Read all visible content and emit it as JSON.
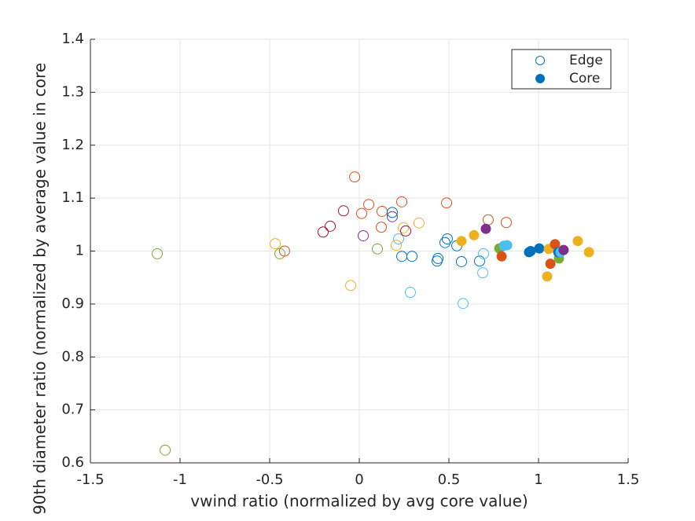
{
  "chart_data": {
    "type": "scatter",
    "xlabel": "vwind ratio (normalized by avg core value)",
    "ylabel": "90th diameter ratio (normalized by average value in core",
    "xlim": [
      -1.5,
      1.5
    ],
    "ylim": [
      0.6,
      1.4
    ],
    "xticks": [
      -1.5,
      -1,
      -0.5,
      0,
      0.5,
      1,
      1.5
    ],
    "yticks": [
      0.6,
      0.7,
      0.8,
      0.9,
      1,
      1.1,
      1.2,
      1.3,
      1.4
    ],
    "grid": true,
    "legend_position": "northeast",
    "series": [
      {
        "name": "Edge",
        "marker": "open",
        "color": "#0072bd",
        "x": [
          -1.127,
          -1.083,
          -0.469,
          -0.443,
          -0.417,
          -0.048,
          -0.026,
          -0.202,
          -0.162,
          -0.088,
          0.013,
          0.022,
          0.053,
          0.101,
          0.123,
          0.127,
          0.184,
          0.184,
          0.206,
          0.219,
          0.237,
          0.246,
          0.259,
          0.237,
          0.285,
          0.294,
          0.333,
          0.434,
          0.439,
          0.487,
          0.478,
          0.491,
          0.544,
          0.57,
          0.579,
          0.671,
          0.689,
          0.693,
          0.719,
          0.82
        ],
        "values": [
          0.995,
          0.624,
          1.014,
          0.995,
          1.0,
          0.935,
          1.14,
          1.036,
          1.047,
          1.076,
          1.071,
          1.029,
          1.088,
          1.004,
          1.045,
          1.075,
          1.065,
          1.073,
          1.011,
          1.023,
          1.093,
          1.044,
          1.038,
          0.99,
          0.922,
          0.99,
          1.053,
          0.981,
          0.986,
          1.091,
          1.016,
          1.023,
          1.01,
          0.98,
          0.901,
          0.981,
          0.959,
          0.995,
          1.059,
          1.054
        ],
        "colors": [
          "#77ac30",
          "#77ac30",
          "#edb120",
          "#77ac30",
          "#d95319",
          "#edb120",
          "#d95319",
          "#a2142f",
          "#a2142f",
          "#a2142f",
          "#d95319",
          "#7e2f8e",
          "#d95319",
          "#77ac30",
          "#d95319",
          "#d95319",
          "#7e2f8e",
          "#0072bd",
          "#edb120",
          "#4dbeee",
          "#d95319",
          "#edb120",
          "#a2142f",
          "#0072bd",
          "#4dbeee",
          "#0072bd",
          "#edb120",
          "#0072bd",
          "#0072bd",
          "#d95319",
          "#0072bd",
          "#0072bd",
          "#0072bd",
          "#0072bd",
          "#4dbeee",
          "#0072bd",
          "#4dbeee",
          "#4dbeee",
          "#d95319",
          "#d95319"
        ]
      },
      {
        "name": "Core",
        "marker": "filled",
        "color": "#0072bd",
        "x": [
          0.57,
          0.64,
          0.706,
          0.781,
          0.794,
          0.807,
          0.825,
          0.947,
          0.956,
          1.004,
          1.048,
          1.057,
          1.066,
          1.092,
          1.114,
          1.11,
          1.123,
          1.14,
          1.219,
          1.281
        ],
        "values": [
          1.019,
          1.03,
          1.042,
          1.005,
          0.99,
          1.01,
          1.011,
          0.998,
          1.0,
          1.005,
          0.952,
          1.004,
          0.976,
          1.013,
          0.986,
          0.998,
          0.998,
          1.002,
          1.019,
          0.998
        ],
        "colors": [
          "#edb120",
          "#edb120",
          "#7e2f8e",
          "#77ac30",
          "#d95319",
          "#4dbeee",
          "#4dbeee",
          "#0072bd",
          "#0072bd",
          "#0072bd",
          "#edb120",
          "#edb120",
          "#d95319",
          "#d95319",
          "#77ac30",
          "#0072bd",
          "#4dbeee",
          "#7e2f8e",
          "#edb120",
          "#edb120"
        ]
      }
    ]
  }
}
